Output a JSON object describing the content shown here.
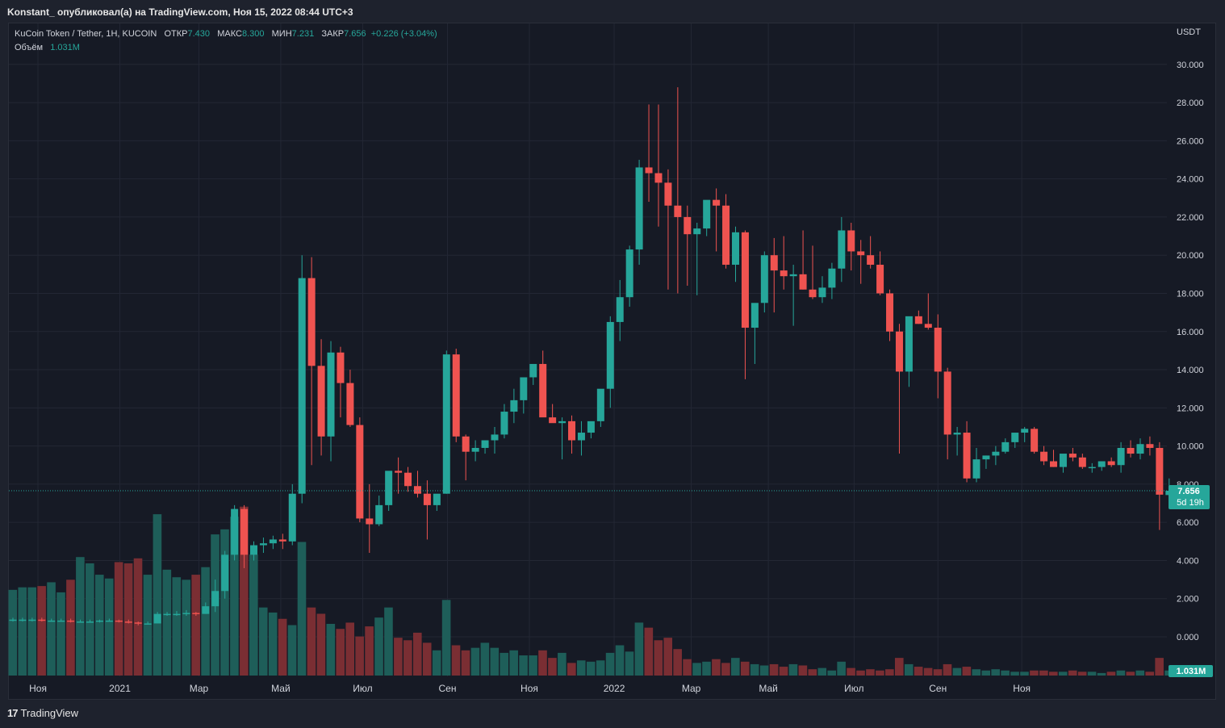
{
  "header": {
    "publish_line": "Konstant_ опубликовал(а) на TradingView.com, Ноя 15, 2022 08:44 UTC+3"
  },
  "legend": {
    "symbol": "KuCoin Token / Tether, 1H, KUCOIN",
    "open_label": "ОТКР",
    "open_value": "7.430",
    "high_label": "МАКС",
    "high_value": "8.300",
    "low_label": "МИН",
    "low_value": "7.231",
    "close_label": "ЗАКР",
    "close_value": "7.656",
    "change": "+0.226 (+3.04%)",
    "volume_label": "Объём",
    "volume_value": "1.031M"
  },
  "price_scale": {
    "currency": "USDT",
    "last_price_label": "7.656",
    "countdown_label": "5d 19h",
    "last_volume_label": "1.031M"
  },
  "brand": {
    "logo": "17",
    "name": "TradingView"
  },
  "colors": {
    "up": "#26a69a",
    "down": "#ef5350",
    "up_volume": "#1e5e59",
    "down_volume": "#7a2e33",
    "grid": "#232734",
    "background": "#161a25"
  },
  "chart_data": {
    "type": "candlestick",
    "y_ticks": [
      "0.000",
      "2.000",
      "4.000",
      "6.000",
      "8.000",
      "10.000",
      "12.000",
      "14.000",
      "16.000",
      "18.000",
      "20.000",
      "22.000",
      "24.000",
      "26.000",
      "28.000",
      "30.000"
    ],
    "ylim": [
      0,
      31.5
    ],
    "x_ticks": [
      {
        "label": "Ноя",
        "week": 2.6
      },
      {
        "label": "2021",
        "week": 11.1
      },
      {
        "label": "Мар",
        "week": 19.3
      },
      {
        "label": "Май",
        "week": 27.8
      },
      {
        "label": "Июл",
        "week": 36.3
      },
      {
        "label": "Сен",
        "week": 45.1
      },
      {
        "label": "Ноя",
        "week": 53.6
      },
      {
        "label": "2022",
        "week": 62.4
      },
      {
        "label": "Мар",
        "week": 70.4
      },
      {
        "label": "Май",
        "week": 78.4
      },
      {
        "label": "Июл",
        "week": 87.3
      },
      {
        "label": "Сен",
        "week": 96.0
      },
      {
        "label": "Ноя",
        "week": 104.7
      }
    ],
    "last_price": 7.656,
    "volume_max": 6.5,
    "ohlcv": [
      [
        0.9,
        1.0,
        0.8,
        0.9,
        3.4
      ],
      [
        0.9,
        1.0,
        0.8,
        0.9,
        3.5
      ],
      [
        0.9,
        1.0,
        0.8,
        0.9,
        3.5
      ],
      [
        0.9,
        1.0,
        0.8,
        0.85,
        3.55
      ],
      [
        0.85,
        0.95,
        0.8,
        0.85,
        3.7
      ],
      [
        0.85,
        0.95,
        0.8,
        0.85,
        3.3
      ],
      [
        0.85,
        0.95,
        0.75,
        0.8,
        3.8
      ],
      [
        0.8,
        0.9,
        0.75,
        0.8,
        4.7
      ],
      [
        0.8,
        0.9,
        0.75,
        0.8,
        4.45
      ],
      [
        0.8,
        0.9,
        0.75,
        0.85,
        4.0
      ],
      [
        0.85,
        0.95,
        0.8,
        0.85,
        3.85
      ],
      [
        0.85,
        0.9,
        0.75,
        0.8,
        4.5
      ],
      [
        0.8,
        0.9,
        0.7,
        0.75,
        4.45
      ],
      [
        0.75,
        0.8,
        0.6,
        0.7,
        4.65
      ],
      [
        0.7,
        0.8,
        0.65,
        0.7,
        4.0
      ],
      [
        0.7,
        1.3,
        0.7,
        1.2,
        6.4
      ],
      [
        1.2,
        1.3,
        1.1,
        1.2,
        4.2
      ],
      [
        1.2,
        1.35,
        1.1,
        1.2,
        3.9
      ],
      [
        1.2,
        1.4,
        1.1,
        1.25,
        3.8
      ],
      [
        1.25,
        1.3,
        1.1,
        1.2,
        4.0
      ],
      [
        1.2,
        1.8,
        1.2,
        1.6,
        4.3
      ],
      [
        1.6,
        3.0,
        1.3,
        2.4,
        5.6
      ],
      [
        2.4,
        4.5,
        2.0,
        4.3,
        5.8
      ],
      [
        4.3,
        6.9,
        4.0,
        6.7,
        6.3
      ],
      [
        6.7,
        6.9,
        3.6,
        4.3,
        6.7
      ],
      [
        4.3,
        5.0,
        4.0,
        4.8,
        4.8
      ],
      [
        4.8,
        5.2,
        4.4,
        4.9,
        2.7
      ],
      [
        4.9,
        5.3,
        4.6,
        5.1,
        2.5
      ],
      [
        5.1,
        5.4,
        4.6,
        5.0,
        2.25
      ],
      [
        5.0,
        8.0,
        4.8,
        7.5,
        2.0
      ],
      [
        7.5,
        20.0,
        7.0,
        18.8,
        5.3
      ],
      [
        18.8,
        19.9,
        9.0,
        14.2,
        2.7
      ],
      [
        14.2,
        15.6,
        9.5,
        10.5,
        2.45
      ],
      [
        10.5,
        15.5,
        9.2,
        14.9,
        2.05
      ],
      [
        14.9,
        15.2,
        11.5,
        13.3,
        1.85
      ],
      [
        13.3,
        14.0,
        11.0,
        11.1,
        2.1
      ],
      [
        11.1,
        11.5,
        6.0,
        6.2,
        1.55
      ],
      [
        6.2,
        8.0,
        4.4,
        5.9,
        1.95
      ],
      [
        5.9,
        7.4,
        5.8,
        6.9,
        2.3
      ],
      [
        6.9,
        8.3,
        6.6,
        8.7,
        2.7
      ],
      [
        8.7,
        9.4,
        7.5,
        8.6,
        1.5
      ],
      [
        8.6,
        8.9,
        7.6,
        7.9,
        1.4
      ],
      [
        7.9,
        8.7,
        7.3,
        7.5,
        1.7
      ],
      [
        7.5,
        8.2,
        5.1,
        6.9,
        1.3
      ],
      [
        6.9,
        7.2,
        6.6,
        7.5,
        1.0
      ],
      [
        7.5,
        15.0,
        7.5,
        14.8,
        3.0
      ],
      [
        14.8,
        15.1,
        10.2,
        10.5,
        1.2
      ],
      [
        10.5,
        10.6,
        8.2,
        9.7,
        1.0
      ],
      [
        9.7,
        10.3,
        9.2,
        9.9,
        1.1
      ],
      [
        9.9,
        10.2,
        9.6,
        10.3,
        1.3
      ],
      [
        10.3,
        11.0,
        9.6,
        10.6,
        1.1
      ],
      [
        10.6,
        12.2,
        10.4,
        11.8,
        0.9
      ],
      [
        11.8,
        13.0,
        11.2,
        12.4,
        1.0
      ],
      [
        12.4,
        13.6,
        11.7,
        13.6,
        0.8
      ],
      [
        13.6,
        14.3,
        13.2,
        14.3,
        0.8
      ],
      [
        14.3,
        15.0,
        11.6,
        11.5,
        1.0
      ],
      [
        11.5,
        12.2,
        11.3,
        11.2,
        0.7
      ],
      [
        11.2,
        11.5,
        9.3,
        11.3,
        0.9
      ],
      [
        11.3,
        11.6,
        9.6,
        10.3,
        0.5
      ],
      [
        10.3,
        11.3,
        9.5,
        10.7,
        0.6
      ],
      [
        10.7,
        11.1,
        10.4,
        11.3,
        0.55
      ],
      [
        11.3,
        12.9,
        11.0,
        13.0,
        0.6
      ],
      [
        13.0,
        16.8,
        12.0,
        16.5,
        0.9
      ],
      [
        16.5,
        18.7,
        15.5,
        17.8,
        1.2
      ],
      [
        17.8,
        20.5,
        17.3,
        20.3,
        0.95
      ],
      [
        20.3,
        25.0,
        19.5,
        24.6,
        2.1
      ],
      [
        24.6,
        27.9,
        22.8,
        24.3,
        1.9
      ],
      [
        24.3,
        27.9,
        21.5,
        23.8,
        1.4
      ],
      [
        23.8,
        24.5,
        18.2,
        22.6,
        1.5
      ],
      [
        22.6,
        28.8,
        18.0,
        22.0,
        1.05
      ],
      [
        22.0,
        22.6,
        18.4,
        21.1,
        0.65
      ],
      [
        21.1,
        21.7,
        17.9,
        21.4,
        0.5
      ],
      [
        21.4,
        22.8,
        21.0,
        22.9,
        0.55
      ],
      [
        22.9,
        23.5,
        20.2,
        22.6,
        0.65
      ],
      [
        22.6,
        23.2,
        19.3,
        19.5,
        0.5
      ],
      [
        19.5,
        21.5,
        18.6,
        21.2,
        0.7
      ],
      [
        21.2,
        21.3,
        13.5,
        16.2,
        0.55
      ],
      [
        16.2,
        17.0,
        14.3,
        17.5,
        0.45
      ],
      [
        17.5,
        20.2,
        17.0,
        20.0,
        0.4
      ],
      [
        20.0,
        20.9,
        17.0,
        19.2,
        0.45
      ],
      [
        19.2,
        21.0,
        18.2,
        18.9,
        0.35
      ],
      [
        18.9,
        19.5,
        16.3,
        19.0,
        0.45
      ],
      [
        19.0,
        21.3,
        18.2,
        18.2,
        0.4
      ],
      [
        18.2,
        20.5,
        17.7,
        17.8,
        0.25
      ],
      [
        17.8,
        18.9,
        17.5,
        18.3,
        0.3
      ],
      [
        18.3,
        19.6,
        17.7,
        19.3,
        0.2
      ],
      [
        19.3,
        22.0,
        18.6,
        21.3,
        0.55
      ],
      [
        21.3,
        21.7,
        19.2,
        20.2,
        0.3
      ],
      [
        20.2,
        20.8,
        18.5,
        20.0,
        0.2
      ],
      [
        20.0,
        21.0,
        19.3,
        19.5,
        0.25
      ],
      [
        19.5,
        20.2,
        17.9,
        18.0,
        0.2
      ],
      [
        18.0,
        18.2,
        15.5,
        16.0,
        0.25
      ],
      [
        16.0,
        16.4,
        9.6,
        13.9,
        0.7
      ],
      [
        13.9,
        14.9,
        13.1,
        16.8,
        0.45
      ],
      [
        16.8,
        17.1,
        16.4,
        16.4,
        0.35
      ],
      [
        16.4,
        18.0,
        16.1,
        16.2,
        0.3
      ],
      [
        16.2,
        16.9,
        12.5,
        13.9,
        0.25
      ],
      [
        13.9,
        14.1,
        9.3,
        10.6,
        0.45
      ],
      [
        10.6,
        11.0,
        9.5,
        10.7,
        0.3
      ],
      [
        10.7,
        11.3,
        8.1,
        8.3,
        0.35
      ],
      [
        8.3,
        9.9,
        8.1,
        9.3,
        0.25
      ],
      [
        9.3,
        9.5,
        8.8,
        9.5,
        0.2
      ],
      [
        9.5,
        10.0,
        9.0,
        9.7,
        0.25
      ],
      [
        9.7,
        10.4,
        9.6,
        10.2,
        0.2
      ],
      [
        10.2,
        10.6,
        9.9,
        10.7,
        0.15
      ],
      [
        10.7,
        11.0,
        10.2,
        10.9,
        0.15
      ],
      [
        10.9,
        11.0,
        9.6,
        9.7,
        0.2
      ],
      [
        9.7,
        10.0,
        9.0,
        9.2,
        0.2
      ],
      [
        9.2,
        9.8,
        8.9,
        8.9,
        0.15
      ],
      [
        8.9,
        9.3,
        8.6,
        9.6,
        0.15
      ],
      [
        9.6,
        9.9,
        9.2,
        9.4,
        0.2
      ],
      [
        9.4,
        9.6,
        8.8,
        8.9,
        0.15
      ],
      [
        8.9,
        9.1,
        8.6,
        8.9,
        0.15
      ],
      [
        8.9,
        9.2,
        8.7,
        9.2,
        0.1
      ],
      [
        9.2,
        9.4,
        8.9,
        9.0,
        0.15
      ],
      [
        9.0,
        10.2,
        8.6,
        9.9,
        0.2
      ],
      [
        9.9,
        10.3,
        9.4,
        9.6,
        0.15
      ],
      [
        9.6,
        10.4,
        9.3,
        10.1,
        0.2
      ],
      [
        10.1,
        10.5,
        9.5,
        9.9,
        0.15
      ],
      [
        9.9,
        10.2,
        5.6,
        7.45,
        0.7
      ],
      [
        7.43,
        8.3,
        7.231,
        7.656,
        0.2
      ]
    ]
  }
}
